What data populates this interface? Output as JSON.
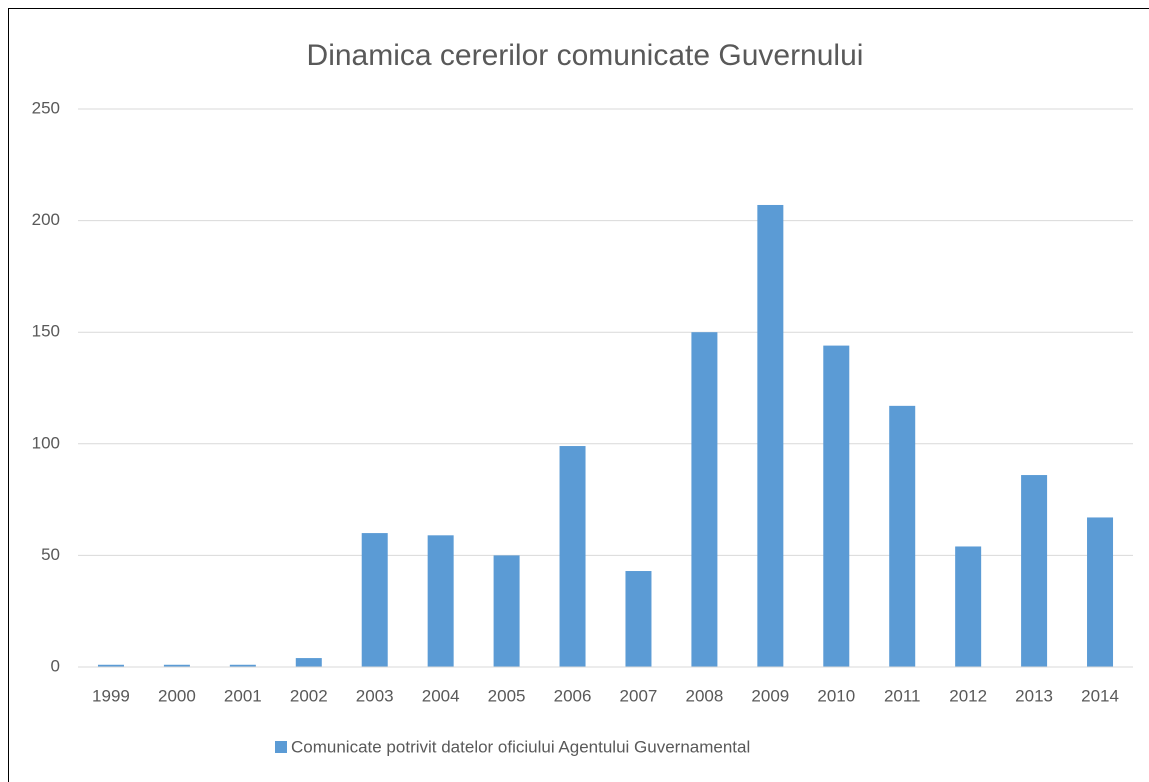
{
  "chart_data": {
    "type": "bar",
    "title": "Dinamica cererilor comunicate Guvernului",
    "categories": [
      "1999",
      "2000",
      "2001",
      "2002",
      "2003",
      "2004",
      "2005",
      "2006",
      "2007",
      "2008",
      "2009",
      "2010",
      "2011",
      "2012",
      "2013",
      "2014"
    ],
    "series": [
      {
        "name": "Comunicate potrivit datelor oficiului Agentului Guvernamental",
        "color": "#5b9bd5",
        "values": [
          1,
          1,
          1,
          4,
          60,
          59,
          50,
          99,
          43,
          150,
          207,
          144,
          117,
          54,
          86,
          67
        ]
      }
    ],
    "ylim": [
      0,
      250
    ],
    "yticks": [
      0,
      50,
      100,
      150,
      200,
      250
    ],
    "grid": true,
    "legend": "bottom"
  }
}
